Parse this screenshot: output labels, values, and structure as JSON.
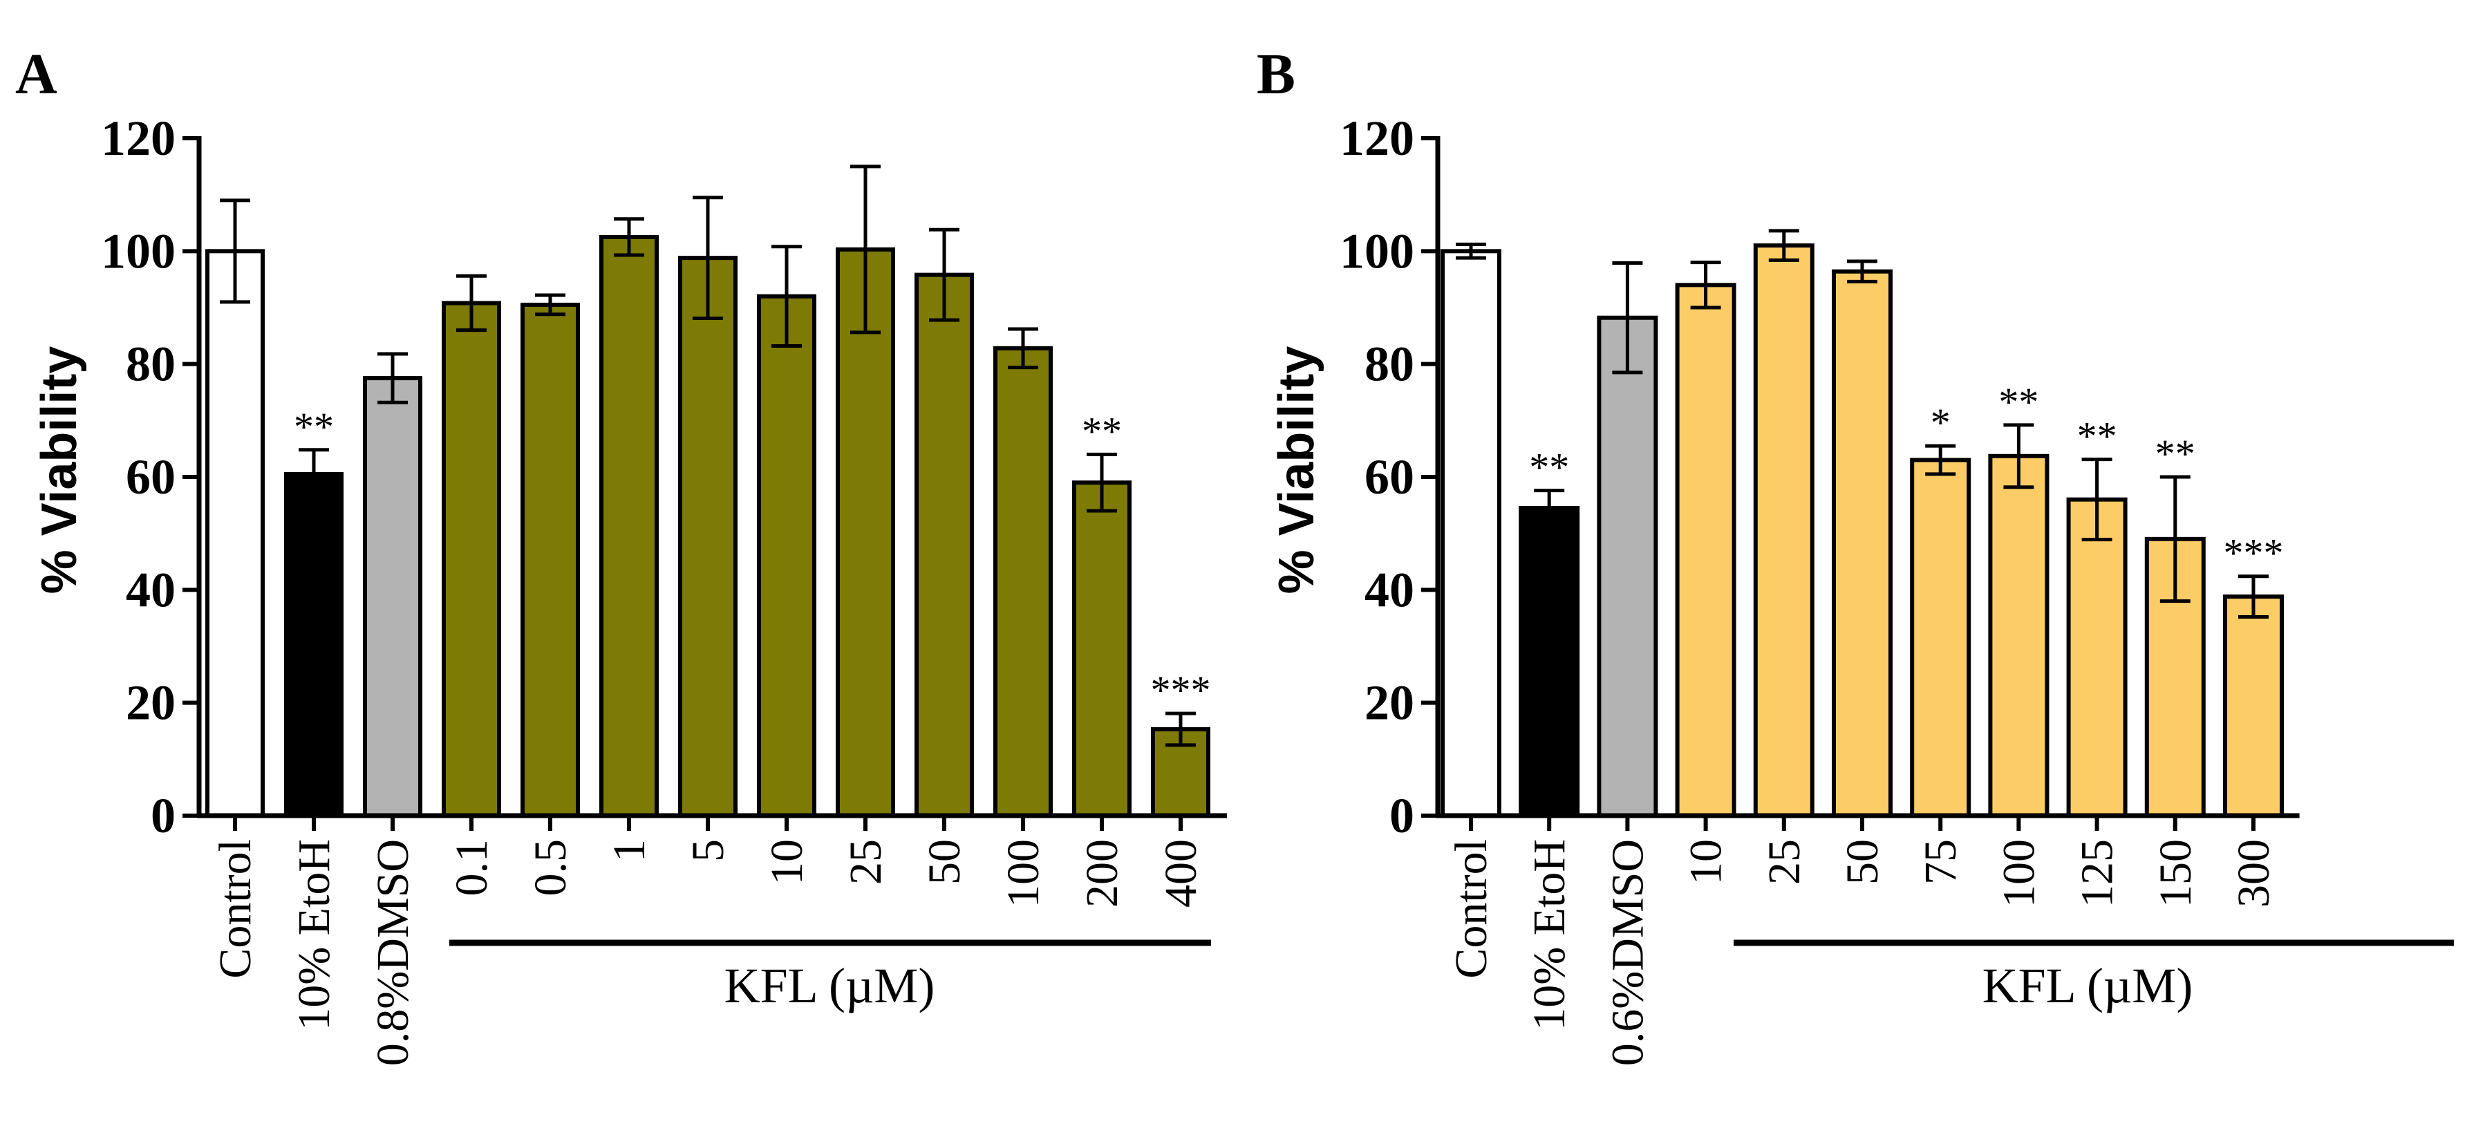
{
  "chart_data": [
    {
      "type": "bar",
      "panel": "A",
      "ylabel": "% Viability",
      "ylim": [
        0,
        120
      ],
      "yticks": [
        "0",
        "20",
        "40",
        "60",
        "80",
        "100",
        "120"
      ],
      "group_label": "KFL (µM)",
      "categories": [
        "Control",
        "10% EtoH",
        "0.8%DMSO",
        "0.1",
        "0.5",
        "1",
        "5",
        "10",
        "25",
        "50",
        "100",
        "200",
        "400"
      ],
      "values": [
        100,
        60.5,
        77.5,
        90.8,
        90.5,
        102.5,
        98.8,
        92,
        100.3,
        95.8,
        82.8,
        59,
        15.3
      ],
      "errors": [
        9,
        4.3,
        4.3,
        4.8,
        1.7,
        3.2,
        10.7,
        8.8,
        14.7,
        8,
        3.4,
        5,
        2.8
      ],
      "significance": [
        "",
        "**",
        "",
        "",
        "",
        "",
        "",
        "",
        "",
        "",
        "",
        "**",
        "***"
      ],
      "colors": [
        "#ffffff",
        "#000000",
        "#b3b3b3",
        "#7d7a05",
        "#7d7a05",
        "#7d7a05",
        "#7d7a05",
        "#7d7a05",
        "#7d7a05",
        "#7d7a05",
        "#7d7a05",
        "#7d7a05",
        "#7d7a05"
      ],
      "group_start_index": 3,
      "grid": false
    },
    {
      "type": "bar",
      "panel": "B",
      "ylabel": "% Viability",
      "ylim": [
        0,
        120
      ],
      "yticks": [
        "0",
        "20",
        "40",
        "60",
        "80",
        "100",
        "120"
      ],
      "group_label": "KFL (µM)",
      "categories": [
        "Control",
        "10% EtoH",
        "0.6%DMSO",
        "10",
        "25",
        "50",
        "75",
        "100",
        "125",
        "150",
        "300"
      ],
      "values": [
        100,
        54.5,
        88.2,
        94,
        101,
        96.4,
        63,
        63.7,
        56,
        49,
        38.8
      ],
      "errors": [
        1.2,
        3.1,
        9.7,
        4,
        2.6,
        1.8,
        2.5,
        5.5,
        7.1,
        11,
        3.6
      ],
      "significance": [
        "",
        "**",
        "",
        "",
        "",
        "",
        "*",
        "**",
        "**",
        "**",
        "***"
      ],
      "colors": [
        "#ffffff",
        "#000000",
        "#b3b3b3",
        "#fccd66",
        "#fccd66",
        "#fccd66",
        "#fccd66",
        "#fccd66",
        "#fccd66",
        "#fccd66",
        "#fccd66"
      ],
      "group_start_index": 3,
      "grid": false
    }
  ]
}
